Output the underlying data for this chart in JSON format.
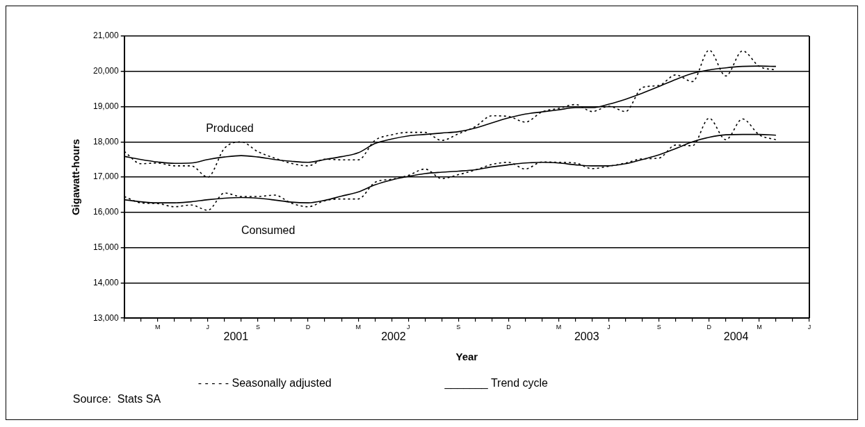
{
  "chart_data": {
    "type": "line",
    "xlabel": "Year",
    "ylabel": "Gigawatt-hours",
    "categories": [
      null,
      null,
      "M",
      null,
      null,
      "J",
      null,
      null,
      "S",
      null,
      null,
      "D",
      null,
      null,
      "M",
      null,
      null,
      "J",
      null,
      null,
      "S",
      null,
      null,
      "D",
      null,
      null,
      "M",
      null,
      null,
      "J",
      null,
      null,
      "S",
      null,
      null,
      "D",
      null,
      null,
      "M",
      null,
      null,
      "J"
    ],
    "series": [
      {
        "color": "#000000",
        "line_style": "dashed",
        "values": [
          17730,
          17380,
          17400,
          17320,
          17320,
          17000,
          17820,
          18000,
          17720,
          17540,
          17390,
          17320,
          17510,
          17490,
          17490,
          18040,
          18200,
          18270,
          18270,
          18040,
          18230,
          18430,
          18740,
          18720,
          18560,
          18850,
          18950,
          19060,
          18860,
          19010,
          18860,
          19540,
          19600,
          19900,
          19710,
          20600,
          19870,
          20580,
          20140,
          20040,
          null,
          null
        ]
      },
      {
        "color": "#000000",
        "line_style": "solid",
        "values": [
          17590,
          17500,
          17430,
          17390,
          17400,
          17500,
          17570,
          17610,
          17570,
          17500,
          17450,
          17420,
          17500,
          17580,
          17690,
          17950,
          18080,
          18170,
          18210,
          18250,
          18290,
          18390,
          18540,
          18680,
          18790,
          18850,
          18910,
          18970,
          18970,
          19070,
          19210,
          19380,
          19570,
          19770,
          19940,
          20040,
          20100,
          20140,
          20150,
          20140,
          null,
          null
        ]
      },
      {
        "color": "#000000",
        "line_style": "dashed",
        "values": [
          16450,
          16270,
          16250,
          16160,
          16210,
          16060,
          16550,
          16450,
          16450,
          16490,
          16260,
          16160,
          16330,
          16380,
          16380,
          16850,
          16940,
          17050,
          17230,
          16960,
          17070,
          17200,
          17360,
          17420,
          17230,
          17430,
          17420,
          17400,
          17240,
          17310,
          17400,
          17520,
          17540,
          17910,
          17890,
          18670,
          18060,
          18650,
          18200,
          18060,
          null,
          null
        ]
      },
      {
        "color": "#000000",
        "line_style": "solid",
        "values": [
          16360,
          16300,
          16270,
          16270,
          16300,
          16360,
          16400,
          16420,
          16400,
          16350,
          16290,
          16270,
          16340,
          16460,
          16580,
          16780,
          16920,
          17020,
          17100,
          17140,
          17170,
          17210,
          17290,
          17350,
          17400,
          17420,
          17400,
          17350,
          17320,
          17320,
          17380,
          17500,
          17630,
          17810,
          18000,
          18130,
          18200,
          18210,
          18210,
          18190,
          null,
          null
        ]
      }
    ],
    "ylim": [
      13000,
      21000
    ],
    "yticks": [
      {
        "value": 13000,
        "label": "13,000"
      },
      {
        "value": 14000,
        "label": "14,000"
      },
      {
        "value": 15000,
        "label": "15,000"
      },
      {
        "value": 16000,
        "label": "16,000"
      },
      {
        "value": 17000,
        "label": "17,000"
      },
      {
        "value": 18000,
        "label": "18,000"
      },
      {
        "value": 19000,
        "label": "19,000"
      },
      {
        "value": 20000,
        "label": "20,000"
      },
      {
        "value": 21000,
        "label": "21,000"
      }
    ],
    "grid": "y",
    "marker": "none",
    "annotations": [
      "Produced",
      "Consumed",
      "2001",
      "2002",
      "2003",
      "2004",
      "- - - - - Seasonally adjusted",
      "_______ Trend cycle",
      "Source:  Stats SA"
    ]
  }
}
